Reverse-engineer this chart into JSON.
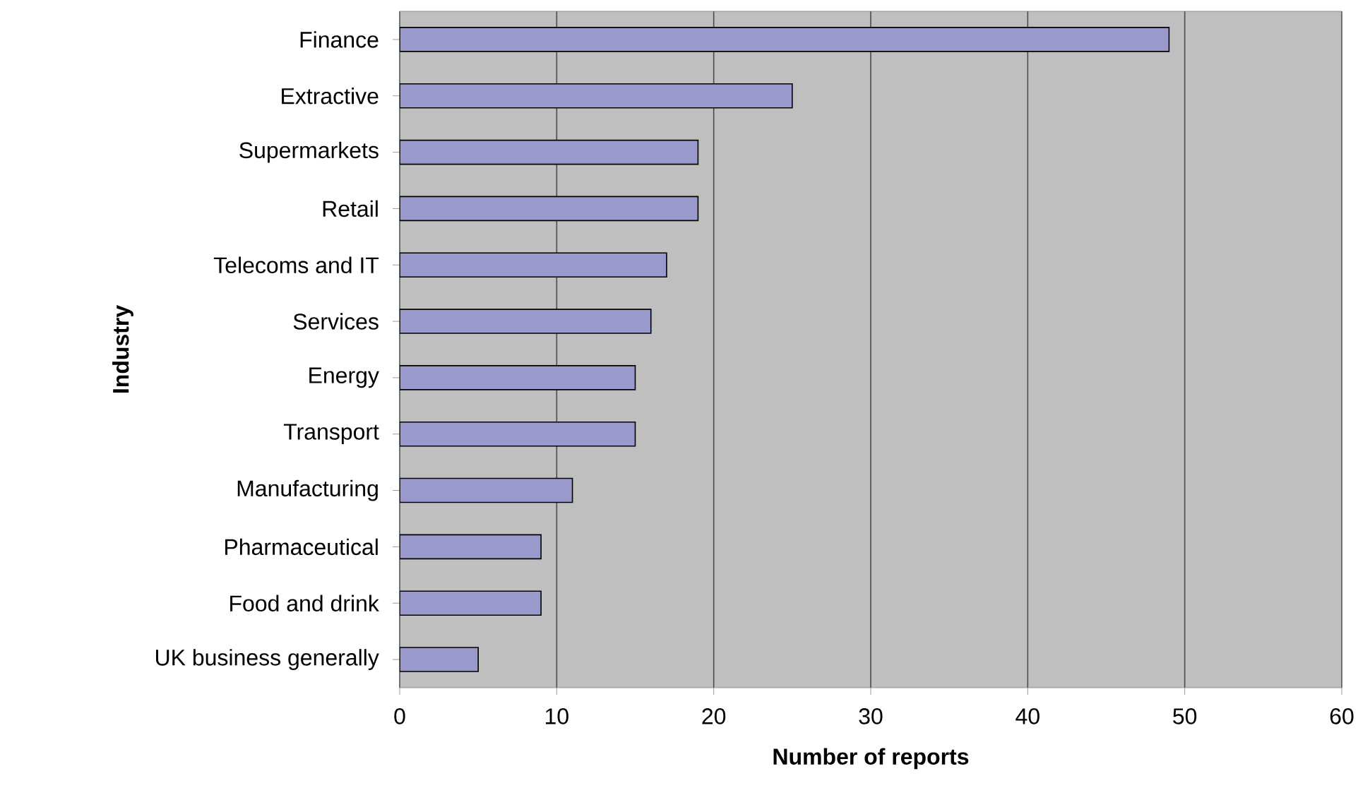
{
  "chart_data": {
    "type": "bar",
    "orientation": "horizontal",
    "xlabel": "Number of reports",
    "ylabel": "Industry",
    "categories": [
      "Finance",
      "Extractive",
      "Supermarkets",
      "Retail",
      "Telecoms and IT",
      "Services",
      "Energy",
      "Transport",
      "Manufacturing",
      "Pharmaceutical",
      "Food and drink",
      "UK business generally"
    ],
    "values": [
      49,
      25,
      19,
      19,
      17,
      16,
      15,
      15,
      11,
      9,
      9,
      5
    ],
    "color": "#9999cc",
    "xlim": [
      0,
      60
    ],
    "xticks": [
      0,
      10,
      20,
      30,
      40,
      50,
      60
    ],
    "grid": "x"
  }
}
